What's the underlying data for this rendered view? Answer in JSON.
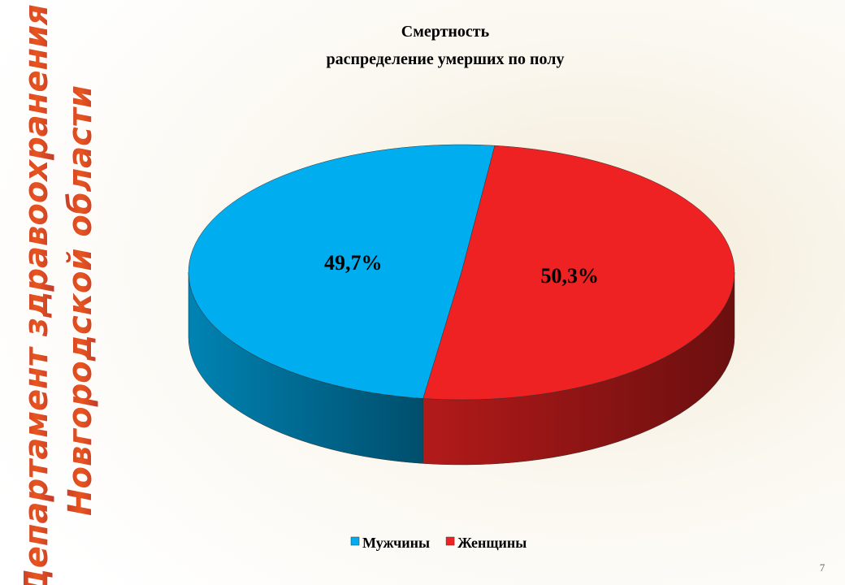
{
  "slide": {
    "side_title": [
      "Департамент здравоохранения",
      "Новгородской области"
    ],
    "page_number": "7"
  },
  "chart_data": {
    "type": "pie",
    "title": "Смертность",
    "subtitle": "распределение умерших по полу",
    "series": [
      {
        "name": "Мужчины",
        "color": "#00aeef",
        "values": [
          49.7
        ],
        "value_labels": [
          "49,7%"
        ]
      },
      {
        "name": "Женщины",
        "color": "#ee2222",
        "values": [
          50.3
        ],
        "value_labels": [
          "50,3%"
        ]
      }
    ]
  }
}
